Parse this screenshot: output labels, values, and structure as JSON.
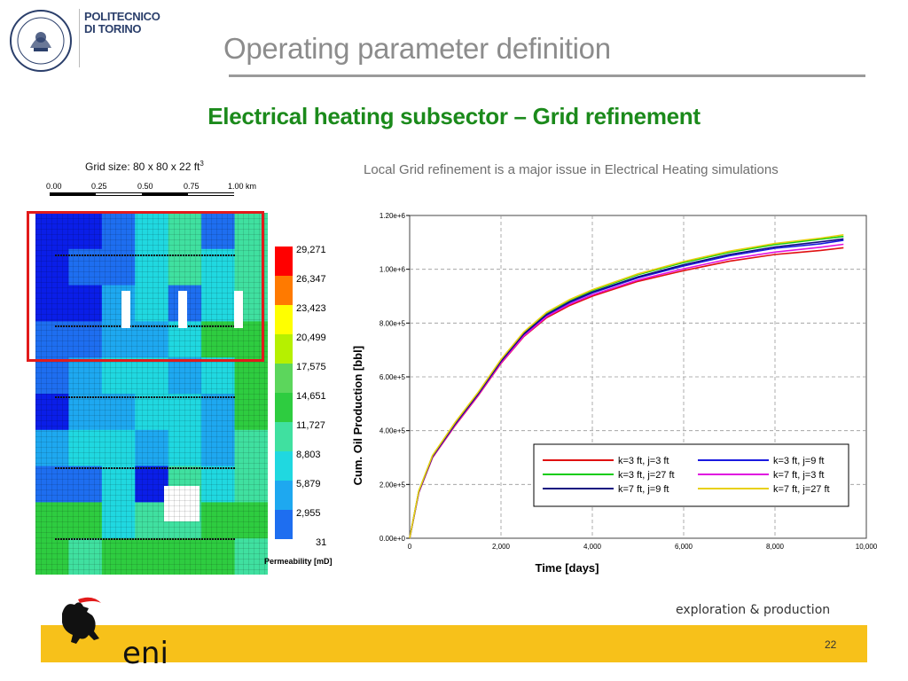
{
  "header": {
    "university_line1": "POLITECNICO",
    "university_line2": "DI TORINO",
    "title": "Operating parameter definition"
  },
  "subtitle": "Electrical heating subsector – Grid refinement",
  "left_panel": {
    "grid_caption": "Grid size: 80 x 80 x 22 ft",
    "grid_caption_sup": "3",
    "scale_labels": [
      "0.00",
      "0.25",
      "0.50",
      "0.75",
      "1.00 km"
    ],
    "colorbar_values": [
      "29,271",
      "26,347",
      "23,423",
      "20,499",
      "17,575",
      "14,651",
      "11,727",
      "8,803",
      "5,879",
      "2,955",
      "31"
    ],
    "colorbar_colors": [
      "#ff0000",
      "#ff7a00",
      "#ffff00",
      "#b6f000",
      "#5cd65c",
      "#2ecc40",
      "#40e0a0",
      "#20d8e0",
      "#1ea8f0",
      "#1e6ef0",
      "#0a1ee8"
    ],
    "colorbar_title": "Permeability [mD]"
  },
  "note": "Local Grid refinement is a major issue in Electrical Heating simulations",
  "chart_data": {
    "type": "line",
    "title": "",
    "xlabel": "Time [days]",
    "ylabel": "Cum. Oil Production [bbl]",
    "xlim": [
      0,
      10000
    ],
    "ylim": [
      0,
      1200000
    ],
    "x_ticks": [
      "0",
      "2,000",
      "4,000",
      "6,000",
      "8,000",
      "10,000"
    ],
    "y_ticks": [
      "0.00e+0",
      "2.00e+5",
      "4.00e+5",
      "6.00e+5",
      "8.00e+5",
      "1.00e+6",
      "1.20e+6"
    ],
    "grid": true,
    "legend_position": "bottom-right",
    "x": [
      0,
      200,
      500,
      1000,
      1500,
      2000,
      2500,
      3000,
      3500,
      4000,
      5000,
      6000,
      7000,
      8000,
      9000,
      9500
    ],
    "series": [
      {
        "name": "k=3 ft, j=3 ft",
        "color": "#e01010",
        "values": [
          0,
          170000,
          300000,
          420000,
          530000,
          650000,
          750000,
          820000,
          865000,
          900000,
          955000,
          995000,
          1030000,
          1055000,
          1070000,
          1080000
        ]
      },
      {
        "name": "k=3 ft, j=9 ft",
        "color": "#1a1ae0",
        "values": [
          0,
          172000,
          303000,
          424000,
          535000,
          656000,
          757000,
          829000,
          876000,
          912000,
          968000,
          1012000,
          1050000,
          1078000,
          1095000,
          1108000
        ]
      },
      {
        "name": "k=3 ft, j=27 ft",
        "color": "#10cc10",
        "values": [
          0,
          175000,
          307000,
          430000,
          541000,
          663000,
          765000,
          838000,
          885000,
          921000,
          980000,
          1025000,
          1063000,
          1092000,
          1112000,
          1122000
        ]
      },
      {
        "name": "k=7 ft, j=3 ft",
        "color": "#e010e0",
        "values": [
          0,
          171000,
          301000,
          422000,
          532000,
          652000,
          752000,
          824000,
          870000,
          905000,
          960000,
          1002000,
          1038000,
          1064000,
          1082000,
          1093000
        ]
      },
      {
        "name": "k=7 ft, j=9 ft",
        "color": "#101080",
        "values": [
          0,
          173000,
          304000,
          426000,
          537000,
          658000,
          760000,
          832000,
          879000,
          915000,
          972000,
          1017000,
          1055000,
          1083000,
          1102000,
          1113000
        ]
      },
      {
        "name": "k=7 ft, j=27 ft",
        "color": "#e8d010",
        "values": [
          0,
          176000,
          308000,
          432000,
          543000,
          665000,
          767000,
          840000,
          887000,
          924000,
          983000,
          1029000,
          1067000,
          1096000,
          1116000,
          1128000
        ]
      }
    ]
  },
  "footer": {
    "tagline": "exploration & production",
    "brand": "eni",
    "page_number": "22"
  }
}
